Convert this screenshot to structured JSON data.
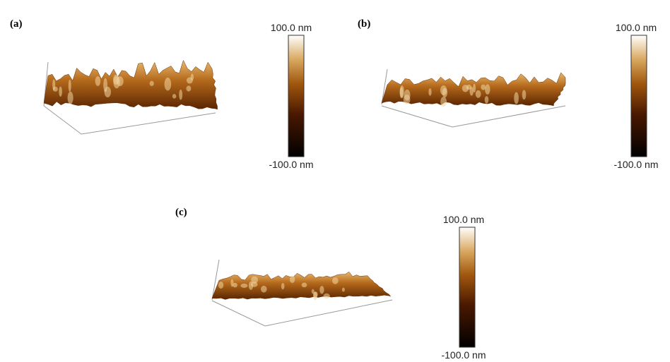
{
  "panels": [
    {
      "label": "(a)",
      "colorbar": {
        "max": "100.0 nm",
        "min": "-100.0 nm"
      }
    },
    {
      "label": "(b)",
      "colorbar": {
        "max": "100.0 nm",
        "min": "-100.0 nm"
      }
    },
    {
      "label": "(c)",
      "colorbar": {
        "max": "100.0 nm",
        "min": "-100.0 nm"
      }
    }
  ]
}
